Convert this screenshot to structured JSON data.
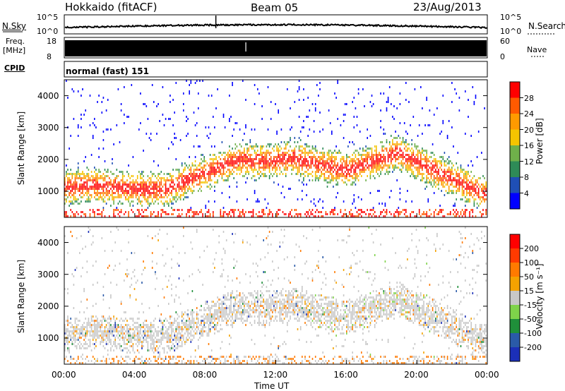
{
  "header": {
    "station": "Hokkaido (fitACF)",
    "beam": "Beam 05",
    "date": "23/Aug/2013"
  },
  "params": {
    "nsky_label": "N.Sky",
    "nsearch_label": "N.Search",
    "nsky_ticks": [
      "10^5",
      "10^0"
    ],
    "nsearch_ticks": [
      "10^5",
      "10^0"
    ],
    "freq_label": "Freq.",
    "freq_unit": "[MHz]",
    "freq_ticks": [
      "18",
      "8"
    ],
    "nave_label": "Nave",
    "nave_ticks": [
      "60",
      "0"
    ],
    "cpid_label": "CPID",
    "cpid_value": "normal (fast) 151"
  },
  "colors": {
    "power_scale": [
      "#0000ff",
      "#1f4fb5",
      "#2e8b57",
      "#6fb04a",
      "#f5c400",
      "#ff9a00",
      "#ff5a00",
      "#ff0000"
    ],
    "velocity_scale": [
      "#1b2fb8",
      "#2a5aa8",
      "#1f8f3a",
      "#7fd34a",
      "#c8c8c8",
      "#f5a200",
      "#ff7a00",
      "#ff3a00",
      "#ff0000"
    ],
    "nsky_trace": "#000000"
  },
  "chart_data": [
    {
      "type": "heatmap",
      "ylabel": "Slant Range [km]",
      "xlabel": "",
      "x_ticks": [
        "00:00",
        "04:00",
        "08:00",
        "12:00",
        "16:00",
        "20:00",
        "00:00"
      ],
      "y_ticks": [
        "1000",
        "2000",
        "3000",
        "4000"
      ],
      "ylim": [
        180,
        4500
      ],
      "xlim_hours": [
        0,
        24
      ],
      "colorbar_label": "Power [dB]",
      "colorbar_ticks": [
        "28",
        "24",
        "20",
        "16",
        "12",
        "8",
        "4"
      ],
      "colorbar_range": [
        0,
        32
      ],
      "grid": false
    },
    {
      "type": "heatmap",
      "ylabel": "Slant Range [km]",
      "xlabel": "Time UT",
      "x_ticks": [
        "00:00",
        "04:00",
        "08:00",
        "12:00",
        "16:00",
        "20:00",
        "00:00"
      ],
      "y_ticks": [
        "1000",
        "2000",
        "3000",
        "4000"
      ],
      "ylim": [
        180,
        4500
      ],
      "xlim_hours": [
        0,
        24
      ],
      "colorbar_label": "Velocity [m s⁻¹]",
      "colorbar_ticks": [
        "200",
        "100",
        "50",
        "15",
        "-15",
        "-50",
        "-100",
        "-200"
      ],
      "colorbar_range": [
        -250,
        250
      ],
      "grid": false
    }
  ]
}
